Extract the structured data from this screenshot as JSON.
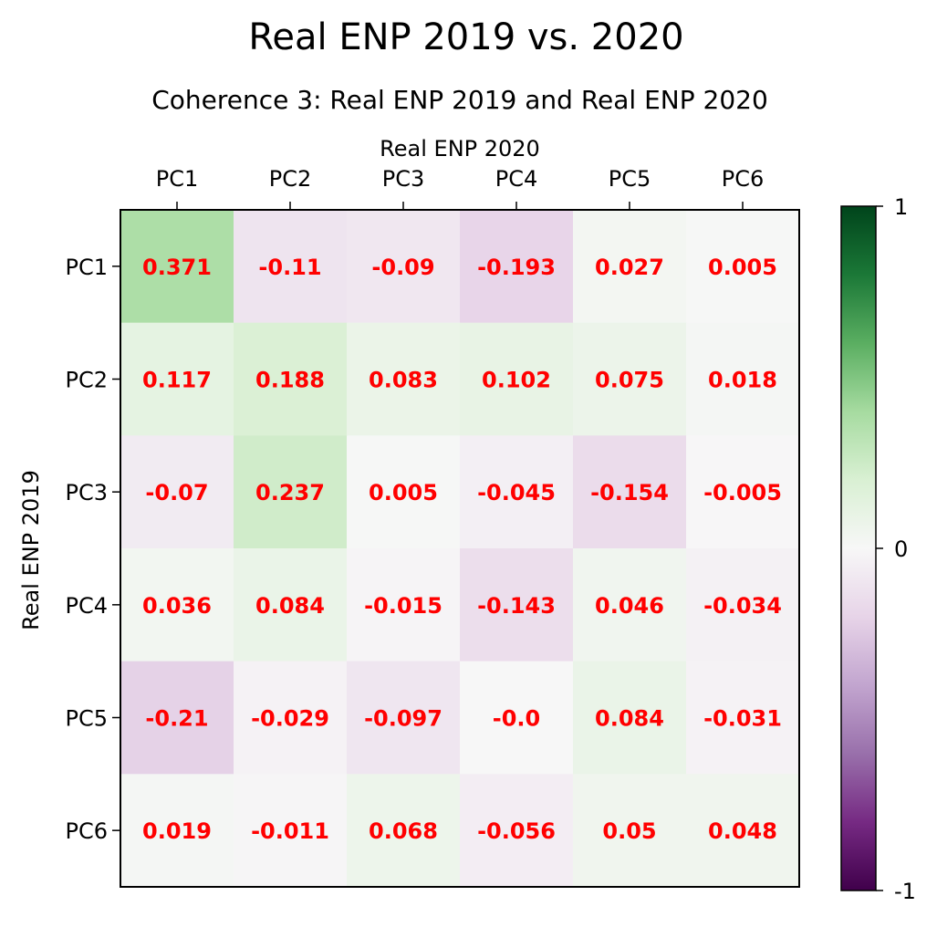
{
  "chart_data": {
    "type": "heatmap",
    "title": "Real ENP 2019 vs. 2020",
    "subtitle": "Coherence 3: Real ENP 2019 and Real ENP 2020",
    "xlabel": "Real ENP 2020",
    "ylabel": "Real ENP 2019",
    "x_categories": [
      "PC1",
      "PC2",
      "PC3",
      "PC4",
      "PC5",
      "PC6"
    ],
    "y_categories": [
      "PC1",
      "PC2",
      "PC3",
      "PC4",
      "PC5",
      "PC6"
    ],
    "values": [
      [
        0.371,
        -0.11,
        -0.09,
        -0.193,
        0.027,
        0.005
      ],
      [
        0.117,
        0.188,
        0.083,
        0.102,
        0.075,
        0.018
      ],
      [
        -0.07,
        0.237,
        0.005,
        -0.045,
        -0.154,
        -0.005
      ],
      [
        0.036,
        0.084,
        -0.015,
        -0.143,
        0.046,
        -0.034
      ],
      [
        -0.21,
        -0.029,
        -0.097,
        -0.0,
        0.084,
        -0.031
      ],
      [
        0.019,
        -0.011,
        0.068,
        -0.056,
        0.05,
        0.048
      ]
    ],
    "value_labels": [
      [
        "0.371",
        "-0.11",
        "-0.09",
        "-0.193",
        "0.027",
        "0.005"
      ],
      [
        "0.117",
        "0.188",
        "0.083",
        "0.102",
        "0.075",
        "0.018"
      ],
      [
        "-0.07",
        "0.237",
        "0.005",
        "-0.045",
        "-0.154",
        "-0.005"
      ],
      [
        "0.036",
        "0.084",
        "-0.015",
        "-0.143",
        "0.046",
        "-0.034"
      ],
      [
        "-0.21",
        "-0.029",
        "-0.097",
        "-0.0",
        "0.084",
        "-0.031"
      ],
      [
        "0.019",
        "-0.011",
        "0.068",
        "-0.056",
        "0.05",
        "0.048"
      ]
    ],
    "colormap": "PRGn",
    "vmin": -1,
    "vmax": 1,
    "colorbar_ticks": [
      "1",
      "0",
      "-1"
    ],
    "colorbar_tick_values": [
      1,
      0,
      -1
    ],
    "annotation_color": "#ff0000",
    "grid": false
  }
}
